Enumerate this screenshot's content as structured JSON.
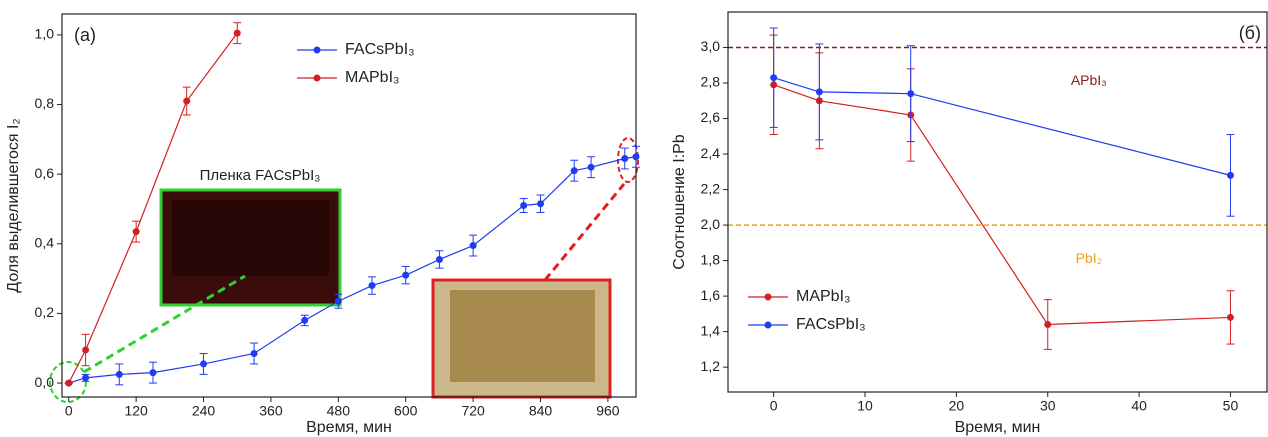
{
  "chart_data": [
    {
      "type": "line",
      "panel_label": "(a)",
      "x_label": "Время, мин",
      "y_label": "Доля выделившегося I₂",
      "xlim": [
        -12,
        1010
      ],
      "ylim": [
        -0.04,
        1.06
      ],
      "xticks": [
        0,
        120,
        240,
        360,
        480,
        600,
        720,
        840,
        960
      ],
      "yticks": [
        {
          "value": 0,
          "label": "0,0"
        },
        {
          "value": 0.2,
          "label": "0,2"
        },
        {
          "value": 0.4,
          "label": "0,4"
        },
        {
          "value": 0.6,
          "label": "0,6"
        },
        {
          "value": 0.8,
          "label": "0,8"
        },
        {
          "value": 1.0,
          "label": "1,0"
        }
      ],
      "legend": "upper center",
      "annotations": [
        "Пленка FACsPbI₃"
      ],
      "series": [
        {
          "name": "FACsPbI₃",
          "color": "#1f3cf0",
          "x": [
            0,
            30,
            90,
            150,
            240,
            330,
            420,
            480,
            540,
            600,
            660,
            720,
            810,
            840,
            900,
            930,
            990,
            1010
          ],
          "values": [
            0,
            0.015,
            0.025,
            0.03,
            0.055,
            0.085,
            0.18,
            0.235,
            0.28,
            0.31,
            0.355,
            0.395,
            0.51,
            0.515,
            0.61,
            0.62,
            0.645,
            0.65
          ],
          "errors": [
            0,
            0.01,
            0.03,
            0.03,
            0.03,
            0.03,
            0.015,
            0.02,
            0.025,
            0.025,
            0.025,
            0.03,
            0.02,
            0.025,
            0.03,
            0.03,
            0.03,
            0.03
          ]
        },
        {
          "name": "MAPbI₃",
          "color": "#d42020",
          "x": [
            0,
            30,
            120,
            210,
            300
          ],
          "values": [
            0,
            0.095,
            0.435,
            0.81,
            1.005
          ],
          "errors": [
            0,
            0.045,
            0.03,
            0.04,
            0.03
          ]
        }
      ]
    },
    {
      "type": "line",
      "panel_label": "(б)",
      "x_label": "Время, мин",
      "y_label": "Соотношение I:Pb",
      "xlim": [
        -5,
        54
      ],
      "ylim": [
        1.06,
        3.2
      ],
      "xticks": [
        0,
        10,
        20,
        30,
        40,
        50
      ],
      "yticks": [
        {
          "value": 1.2,
          "label": "1,2"
        },
        {
          "value": 1.4,
          "label": "1,4"
        },
        {
          "value": 1.6,
          "label": "1,6"
        },
        {
          "value": 1.8,
          "label": "1,8"
        },
        {
          "value": 2.0,
          "label": "2,0"
        },
        {
          "value": 2.2,
          "label": "2,2"
        },
        {
          "value": 2.4,
          "label": "2,4"
        },
        {
          "value": 2.6,
          "label": "2,6"
        },
        {
          "value": 2.8,
          "label": "2,8"
        },
        {
          "value": 3.0,
          "label": "3,0"
        }
      ],
      "legend": "lower left",
      "reference_lines": [
        {
          "value": 3.0,
          "label": "APbI₃",
          "color": "#8b1a1a"
        },
        {
          "value": 2.0,
          "label": "PbI₂",
          "color": "#f0a020"
        }
      ],
      "series": [
        {
          "name": "MAPbI₃",
          "color": "#d42020",
          "x": [
            0,
            5,
            15,
            30,
            50
          ],
          "values": [
            2.79,
            2.7,
            2.62,
            1.44,
            1.48
          ],
          "errors": [
            0.28,
            0.27,
            0.26,
            0.14,
            0.15
          ]
        },
        {
          "name": "FACsPbI₃",
          "color": "#1f3cf0",
          "x": [
            0,
            5,
            15,
            50
          ],
          "values": [
            2.83,
            2.75,
            2.74,
            2.28
          ],
          "errors": [
            0.28,
            0.27,
            0.27,
            0.23
          ]
        }
      ]
    }
  ]
}
